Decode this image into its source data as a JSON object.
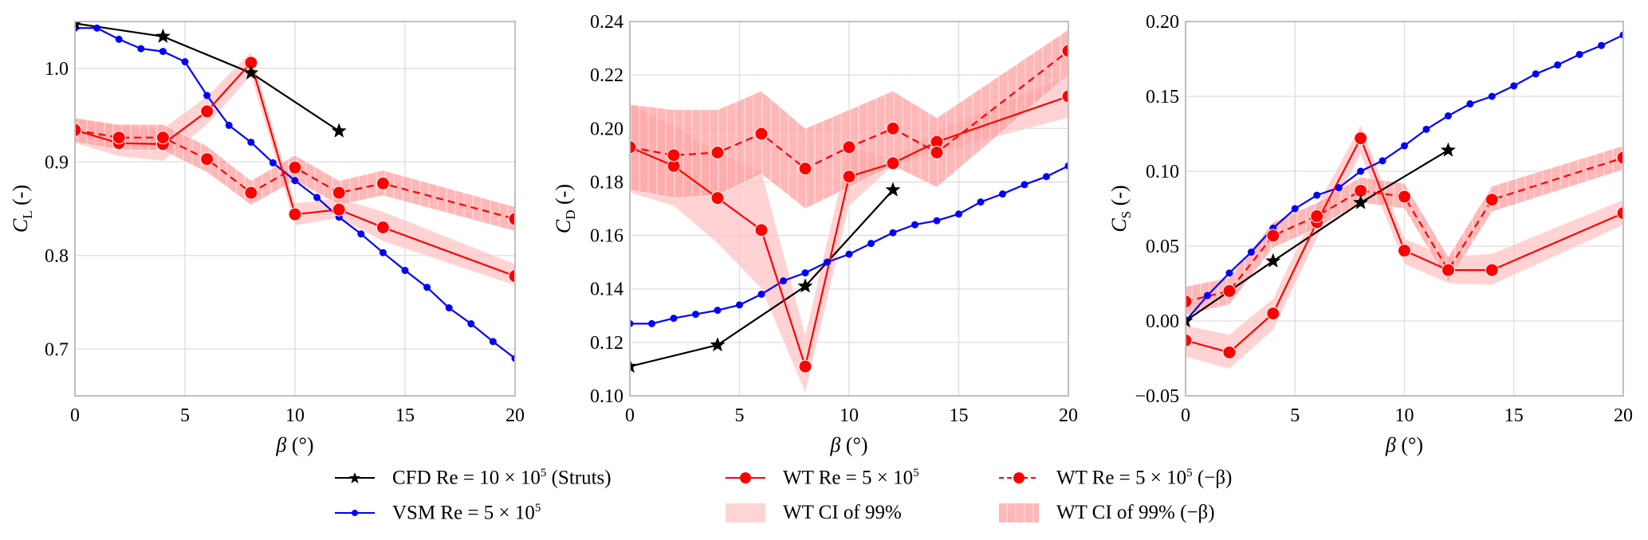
{
  "chart_data": [
    {
      "type": "line",
      "id": "cl",
      "ylabel": "C_L (-)",
      "ylabel_main": "C",
      "ylabel_sub": "L",
      "ylabel_suffix": " (-)",
      "xlabel": "β (°)",
      "xlim": [
        0,
        20
      ],
      "ylim": [
        0.65,
        1.05
      ],
      "xticks": [
        0,
        5,
        10,
        15,
        20
      ],
      "xtick_labels": [
        "0",
        "5",
        "10",
        "15",
        "20"
      ],
      "yticks": [
        0.7,
        0.8,
        0.9,
        1.0
      ],
      "ytick_labels": [
        "0.7",
        "0.8",
        "0.9",
        "1.0"
      ],
      "grid": true,
      "series": [
        {
          "key": "cfd",
          "x": [
            0,
            4,
            8,
            12
          ],
          "y": [
            1.048,
            1.034,
            0.995,
            0.933
          ]
        },
        {
          "key": "vsm",
          "x": [
            0,
            1,
            2,
            3,
            4,
            5,
            6,
            7,
            8,
            9,
            10,
            11,
            12,
            13,
            14,
            15,
            16,
            17,
            18,
            19,
            20
          ],
          "y": [
            1.043,
            1.043,
            1.031,
            1.021,
            1.018,
            1.007,
            0.971,
            0.939,
            0.921,
            0.899,
            0.88,
            0.862,
            0.841,
            0.823,
            0.803,
            0.784,
            0.766,
            0.744,
            0.727,
            0.708,
            0.69
          ]
        },
        {
          "key": "wt",
          "x": [
            0,
            2,
            4,
            6,
            8,
            10,
            12,
            14,
            20
          ],
          "y": [
            0.934,
            0.92,
            0.919,
            0.954,
            1.006,
            0.844,
            0.849,
            0.83,
            0.778
          ],
          "ci_low": [
            0.92,
            0.906,
            0.901,
            0.94,
            0.992,
            0.832,
            0.84,
            0.815,
            0.768
          ],
          "ci_high": [
            0.946,
            0.939,
            0.936,
            0.97,
            1.018,
            0.856,
            0.861,
            0.847,
            0.791
          ]
        },
        {
          "key": "wt_neg",
          "x": [
            0,
            2,
            4,
            6,
            8,
            10,
            12,
            14,
            20
          ],
          "y": [
            0.934,
            0.926,
            0.926,
            0.903,
            0.867,
            0.894,
            0.867,
            0.877,
            0.839
          ],
          "ci_low": [
            0.921,
            0.913,
            0.912,
            0.889,
            0.854,
            0.88,
            0.854,
            0.864,
            0.826
          ],
          "ci_high": [
            0.947,
            0.94,
            0.94,
            0.917,
            0.88,
            0.907,
            0.88,
            0.891,
            0.852
          ]
        }
      ]
    },
    {
      "type": "line",
      "id": "cd",
      "ylabel": "C_D (-)",
      "ylabel_main": "C",
      "ylabel_sub": "D",
      "ylabel_suffix": " (-)",
      "xlabel": "β (°)",
      "xlim": [
        0,
        20
      ],
      "ylim": [
        0.1,
        0.24
      ],
      "xticks": [
        0,
        5,
        10,
        15,
        20
      ],
      "xtick_labels": [
        "0",
        "5",
        "10",
        "15",
        "20"
      ],
      "yticks": [
        0.1,
        0.12,
        0.14,
        0.16,
        0.18,
        0.2,
        0.22,
        0.24
      ],
      "ytick_labels": [
        "0.10",
        "0.12",
        "0.14",
        "0.16",
        "0.18",
        "0.20",
        "0.22",
        "0.24"
      ],
      "grid": true,
      "series": [
        {
          "key": "cfd",
          "x": [
            0,
            4,
            8,
            12
          ],
          "y": [
            0.111,
            0.119,
            0.141,
            0.177
          ]
        },
        {
          "key": "vsm",
          "x": [
            0,
            1,
            2,
            3,
            4,
            5,
            6,
            7,
            8,
            9,
            10,
            11,
            12,
            13,
            14,
            15,
            16,
            17,
            18,
            19,
            20
          ],
          "y": [
            0.127,
            0.127,
            0.129,
            0.1305,
            0.132,
            0.134,
            0.138,
            0.143,
            0.146,
            0.15,
            0.153,
            0.157,
            0.161,
            0.164,
            0.1655,
            0.168,
            0.1725,
            0.1755,
            0.179,
            0.182,
            0.186
          ]
        },
        {
          "key": "wt",
          "x": [
            0,
            2,
            4,
            6,
            8,
            10,
            12,
            14,
            20
          ],
          "y": [
            0.193,
            0.186,
            0.174,
            0.162,
            0.111,
            0.182,
            0.187,
            0.195,
            0.212
          ],
          "ci_low": [
            0.176,
            0.171,
            0.157,
            0.14,
            0.101,
            0.171,
            0.186,
            0.191,
            0.204
          ],
          "ci_high": [
            0.209,
            0.201,
            0.191,
            0.184,
            0.123,
            0.193,
            0.189,
            0.199,
            0.22
          ]
        },
        {
          "key": "wt_neg",
          "x": [
            0,
            2,
            4,
            6,
            8,
            10,
            12,
            14,
            20
          ],
          "y": [
            0.193,
            0.19,
            0.191,
            0.198,
            0.185,
            0.193,
            0.2,
            0.191,
            0.229
          ],
          "ci_low": [
            0.177,
            0.174,
            0.175,
            0.183,
            0.17,
            0.178,
            0.186,
            0.178,
            0.22
          ],
          "ci_high": [
            0.209,
            0.207,
            0.207,
            0.214,
            0.2,
            0.207,
            0.214,
            0.204,
            0.237
          ]
        }
      ]
    },
    {
      "type": "line",
      "id": "cs",
      "ylabel": "C_S (-)",
      "ylabel_main": "C",
      "ylabel_sub": "S",
      "ylabel_suffix": " (-)",
      "xlabel": "β (°)",
      "xlim": [
        0,
        20
      ],
      "ylim": [
        -0.05,
        0.2
      ],
      "xticks": [
        0,
        5,
        10,
        15,
        20
      ],
      "xtick_labels": [
        "0",
        "5",
        "10",
        "15",
        "20"
      ],
      "yticks": [
        -0.05,
        0.0,
        0.05,
        0.1,
        0.15,
        0.2
      ],
      "ytick_labels": [
        "−0.05",
        "0.00",
        "0.05",
        "0.10",
        "0.15",
        "0.20"
      ],
      "grid": true,
      "series": [
        {
          "key": "cfd",
          "x": [
            0,
            4,
            8,
            12
          ],
          "y": [
            0.0,
            0.04,
            0.079,
            0.114
          ]
        },
        {
          "key": "vsm",
          "x": [
            0,
            1,
            2,
            3,
            4,
            5,
            6,
            7,
            8,
            9,
            10,
            11,
            12,
            13,
            14,
            15,
            16,
            17,
            18,
            19,
            20
          ],
          "y": [
            0.0,
            0.017,
            0.032,
            0.046,
            0.062,
            0.075,
            0.084,
            0.089,
            0.1,
            0.107,
            0.117,
            0.128,
            0.137,
            0.145,
            0.15,
            0.157,
            0.165,
            0.171,
            0.178,
            0.184,
            0.191
          ]
        },
        {
          "key": "wt",
          "x": [
            0,
            2,
            4,
            6,
            8,
            10,
            12,
            14,
            20
          ],
          "y": [
            -0.013,
            -0.021,
            0.005,
            0.066,
            0.122,
            0.047,
            0.034,
            0.034,
            0.072
          ],
          "ci_low": [
            -0.024,
            -0.032,
            -0.006,
            0.055,
            0.111,
            0.038,
            0.025,
            0.024,
            0.064
          ],
          "ci_high": [
            -0.003,
            -0.009,
            0.015,
            0.077,
            0.131,
            0.055,
            0.043,
            0.045,
            0.081
          ]
        },
        {
          "key": "wt_neg",
          "x": [
            0,
            2,
            4,
            6,
            8,
            10,
            12,
            14,
            20
          ],
          "y": [
            0.013,
            0.02,
            0.057,
            0.07,
            0.087,
            0.083,
            0.034,
            0.081,
            0.109
          ],
          "ci_low": [
            0.004,
            0.011,
            0.049,
            0.062,
            0.079,
            0.075,
            0.026,
            0.073,
            0.101
          ],
          "ci_high": [
            0.023,
            0.029,
            0.066,
            0.079,
            0.096,
            0.092,
            0.043,
            0.09,
            0.117
          ]
        }
      ]
    }
  ],
  "colors": {
    "cfd": "#000000",
    "vsm": "#0000ff",
    "wt": "#ff0000",
    "ci": "#ffc8c8",
    "ci_neg": "#ff9a9a",
    "grid": "#dddddd",
    "spine": "#bfbfbf"
  },
  "legend": {
    "placement": "bottom-center",
    "items": [
      {
        "key": "cfd",
        "label": "CFD Re = 10 × 10",
        "sup": "5",
        "suffix": " (Struts)"
      },
      {
        "key": "wt",
        "label": "WT Re = 5 × 10",
        "sup": "5",
        "suffix": ""
      },
      {
        "key": "wt_neg",
        "label": "WT Re = 5 × 10",
        "sup": "5",
        "suffix": " (−β)"
      },
      {
        "key": "vsm",
        "label": "VSM Re = 5 × 10",
        "sup": "5",
        "suffix": ""
      },
      {
        "key": "ci",
        "label": "WT CI of 99%",
        "sup": "",
        "suffix": ""
      },
      {
        "key": "ci_neg",
        "label": "WT CI of 99% (−β)",
        "sup": "",
        "suffix": ""
      }
    ]
  }
}
